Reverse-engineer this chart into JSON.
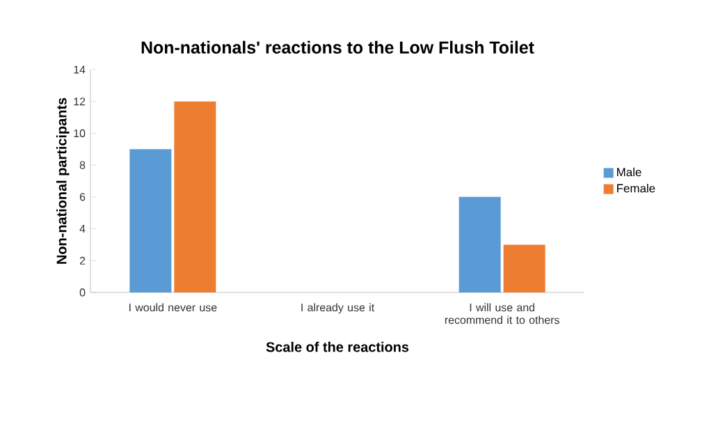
{
  "chart_data": {
    "type": "bar",
    "title": "Non-nationals' reactions to the Low Flush Toilet",
    "xlabel": "Scale of the reactions",
    "ylabel": "Non-national participants",
    "categories": [
      "I would never use",
      "I already use it",
      "I will use and recommend  it to others"
    ],
    "series": [
      {
        "name": "Male",
        "color": "#5b9bd5",
        "values": [
          9,
          0,
          6
        ]
      },
      {
        "name": "Female",
        "color": "#ed7d31",
        "values": [
          12,
          0,
          3
        ]
      }
    ],
    "ylim": [
      0,
      14
    ],
    "yticks": [
      0,
      2,
      4,
      6,
      8,
      10,
      12,
      14
    ],
    "grid": false,
    "legend": "right"
  }
}
